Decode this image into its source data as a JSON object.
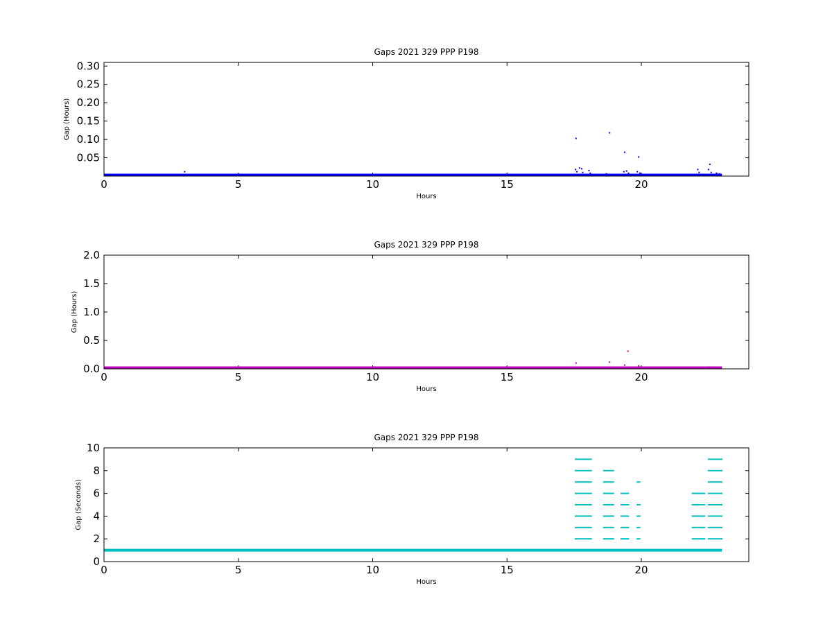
{
  "chart_data": [
    {
      "type": "scatter",
      "title": "Gaps 2021 329 PPP  P198",
      "xlabel": "Hours",
      "ylabel": "Gap (Hours)",
      "xlim": [
        0,
        24
      ],
      "ylim": [
        0.0,
        0.31
      ],
      "xticks": [
        0,
        5,
        10,
        15,
        20
      ],
      "xtick_labels": [
        "0",
        "5",
        "10",
        "15",
        "20"
      ],
      "yticks": [
        0.05,
        0.1,
        0.15,
        0.2,
        0.25,
        0.3
      ],
      "ytick_labels": [
        "0.05",
        "0.10",
        "0.15",
        "0.20",
        "0.25",
        "0.30"
      ],
      "grid": false,
      "color": "#0000ff",
      "series": [
        {
          "baseline": {
            "y": 0.0003,
            "x_start": 0,
            "x_end": 23.0
          },
          "points": [
            [
              3.0,
              0.012
            ],
            [
              17.57,
              0.103
            ],
            [
              17.55,
              0.018
            ],
            [
              17.6,
              0.012
            ],
            [
              17.7,
              0.022
            ],
            [
              17.78,
              0.02
            ],
            [
              17.82,
              0.01
            ],
            [
              18.05,
              0.015
            ],
            [
              18.1,
              0.008
            ],
            [
              18.82,
              0.118
            ],
            [
              18.7,
              0.006
            ],
            [
              19.38,
              0.065
            ],
            [
              19.35,
              0.012
            ],
            [
              19.45,
              0.014
            ],
            [
              19.52,
              0.008
            ],
            [
              19.9,
              0.052
            ],
            [
              19.85,
              0.012
            ],
            [
              19.95,
              0.008
            ],
            [
              22.1,
              0.018
            ],
            [
              22.15,
              0.01
            ],
            [
              22.55,
              0.032
            ],
            [
              22.5,
              0.018
            ],
            [
              22.6,
              0.01
            ],
            [
              22.8,
              0.008
            ],
            [
              22.9,
              0.006
            ]
          ]
        }
      ]
    },
    {
      "type": "scatter",
      "title": "Gaps 2021 329 PPP  P198",
      "xlabel": "Hours",
      "ylabel": "Gap (Hours)",
      "xlim": [
        0,
        24
      ],
      "ylim": [
        0.0,
        2.0
      ],
      "xticks": [
        0,
        5,
        10,
        15,
        20
      ],
      "xtick_labels": [
        "0",
        "5",
        "10",
        "15",
        "20"
      ],
      "yticks": [
        0.0,
        0.5,
        1.0,
        1.5,
        2.0
      ],
      "ytick_labels": [
        "0.0",
        "0.5",
        "1.0",
        "1.5",
        "2.0"
      ],
      "grid": false,
      "series": [
        {
          "color": "#bf00bf",
          "baseline": {
            "y": 0.005,
            "x_start": 0,
            "x_end": 23.0
          },
          "points": [
            [
              17.57,
              0.103
            ],
            [
              18.82,
              0.118
            ],
            [
              19.38,
              0.065
            ],
            [
              19.9,
              0.052
            ],
            [
              22.55,
              0.032
            ]
          ]
        },
        {
          "color": "#ff0000",
          "points": [
            [
              19.5,
              0.31
            ]
          ]
        }
      ]
    },
    {
      "type": "scatter",
      "title": "Gaps 2021 329 PPP  P198",
      "xlabel": "Hours",
      "ylabel": "Gap (Seconds)",
      "xlim": [
        0,
        24
      ],
      "ylim": [
        0,
        10
      ],
      "xticks": [
        0,
        5,
        10,
        15,
        20
      ],
      "xtick_labels": [
        "0",
        "5",
        "10",
        "15",
        "20"
      ],
      "yticks": [
        0,
        2,
        4,
        6,
        8,
        10
      ],
      "ytick_labels": [
        "0",
        "2",
        "4",
        "6",
        "8",
        "10"
      ],
      "grid": false,
      "color": "#00bfbf",
      "series": [
        {
          "baseline": {
            "y": 1,
            "x_start": 0,
            "x_end": 23.0
          },
          "clusters": [
            {
              "x_start": 17.55,
              "x_end": 18.15,
              "levels": [
                2,
                3,
                4,
                5,
                6,
                7,
                8,
                9
              ]
            },
            {
              "x_start": 18.6,
              "x_end": 19.0,
              "levels": [
                2,
                3,
                4,
                5,
                6,
                7,
                8
              ]
            },
            {
              "x_start": 19.25,
              "x_end": 19.55,
              "levels": [
                2,
                3,
                4,
                5,
                6
              ]
            },
            {
              "x_start": 19.85,
              "x_end": 19.95,
              "levels": [
                2,
                3,
                4,
                5,
                7
              ]
            },
            {
              "x_start": 21.9,
              "x_end": 22.35,
              "levels": [
                2,
                3,
                4,
                5,
                6
              ]
            },
            {
              "x_start": 22.5,
              "x_end": 23.0,
              "levels": [
                2,
                3,
                4,
                5,
                6,
                7,
                8,
                9
              ]
            }
          ]
        }
      ]
    }
  ]
}
